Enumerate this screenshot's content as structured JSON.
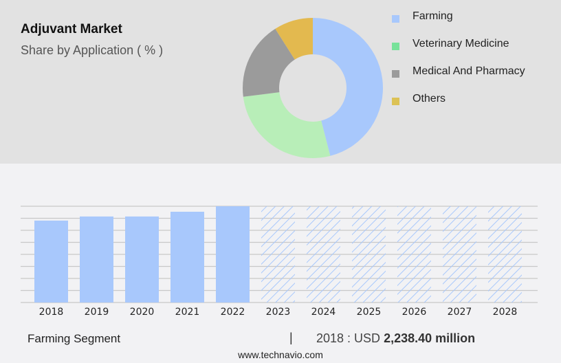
{
  "header": {
    "title": "Adjuvant Market",
    "subtitle": "Share by Application ( % )"
  },
  "legend": [
    {
      "label": "Farming",
      "color": "#a8c8fc"
    },
    {
      "label": "Veterinary Medicine",
      "color": "#78e29a"
    },
    {
      "label": "Medical And Pharmacy",
      "color": "#9b9b9b"
    },
    {
      "label": "Others",
      "color": "#dcc255"
    }
  ],
  "footer": {
    "segment": "Farming Segment",
    "divider": "|",
    "year_label": "2018 : USD ",
    "value": "2,238.40 million",
    "site": "www.technavio.com"
  },
  "chart_data": [
    {
      "type": "pie",
      "title": "Adjuvant Market",
      "subtitle": "Share by Application ( % )",
      "donut": true,
      "categories": [
        "Farming",
        "Veterinary Medicine",
        "Medical And Pharmacy",
        "Others"
      ],
      "values": [
        46,
        27,
        18,
        9
      ],
      "colors": [
        "#a8c8fc",
        "#b8eeb8",
        "#9b9b9b",
        "#e3b94f"
      ],
      "legend_position": "right"
    },
    {
      "type": "bar",
      "title": "Farming Segment",
      "categories": [
        "2018",
        "2019",
        "2020",
        "2021",
        "2022",
        "2023",
        "2024",
        "2025",
        "2026",
        "2027",
        "2028"
      ],
      "values": [
        2238.4,
        2350,
        2350,
        2480,
        2630,
        null,
        null,
        null,
        null,
        null,
        null
      ],
      "forecast": [
        false,
        false,
        false,
        false,
        false,
        true,
        true,
        true,
        true,
        true,
        true
      ],
      "xlabel": "",
      "ylabel": "",
      "grid": true,
      "annotation": "2018 : USD 2,238.40 million"
    }
  ]
}
